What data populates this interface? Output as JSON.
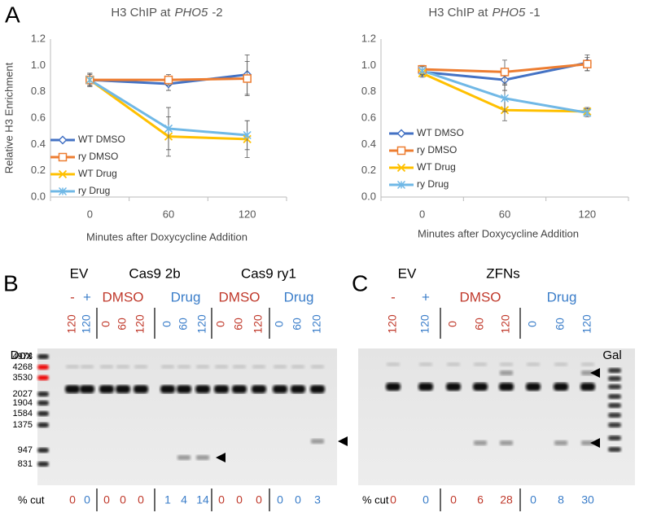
{
  "panel_labels": [
    "A",
    "B",
    "C"
  ],
  "chart_data": [
    {
      "type": "line",
      "title": {
        "text": "H3 ChIP at",
        "gene": "PHO5",
        "suffix": "-2"
      },
      "ylabel": "Relative H3 Enrichment",
      "xlabel": "Minutes after Doxycycline Addition",
      "categories": [
        "0",
        "60",
        "120"
      ],
      "ylim": [
        0,
        1.2
      ],
      "yticks": [
        {
          "value": 0,
          "label": "0.0"
        },
        {
          "value": 0.2,
          "label": "0.2"
        },
        {
          "value": 0.4,
          "label": "0.4"
        },
        {
          "value": 0.6,
          "label": "0.6"
        },
        {
          "value": 0.8,
          "label": "0.8"
        },
        {
          "value": 1,
          "label": "1.0"
        },
        {
          "value": 1.2,
          "label": "1.2"
        }
      ],
      "grid": false,
      "legend": "lower left",
      "series": [
        {
          "name": "WT DMSO",
          "color": "#4472c4",
          "marker": "diamond",
          "values": [
            0.89,
            0.86,
            0.93
          ],
          "errors": [
            0.05,
            0.05,
            0.15
          ]
        },
        {
          "name": "ry DMSO",
          "color": "#ed7d31",
          "marker": "square",
          "values": [
            0.89,
            0.89,
            0.9
          ],
          "errors": [
            0.04,
            0.04,
            0.13
          ]
        },
        {
          "name": "WT Drug",
          "color": "#ffc000",
          "marker": "x",
          "values": [
            0.89,
            0.46,
            0.44
          ],
          "errors": [
            0.05,
            0.15,
            0.14
          ]
        },
        {
          "name": "ry Drug",
          "color": "#70b8e6",
          "marker": "asterisk",
          "values": [
            0.89,
            0.52,
            0.47
          ],
          "errors": [
            0.05,
            0.16,
            0.11
          ]
        }
      ]
    },
    {
      "type": "line",
      "title": {
        "text": "H3 ChIP at",
        "gene": "PHO5",
        "suffix": "-1"
      },
      "ylabel": "Relative H3 Enrichment",
      "xlabel": "Minutes after Doxycycline Addition",
      "categories": [
        "0",
        "60",
        "120"
      ],
      "ylim": [
        0,
        1.2
      ],
      "yticks": [
        {
          "value": 0,
          "label": "0.0"
        },
        {
          "value": 0.2,
          "label": "0.2"
        },
        {
          "value": 0.4,
          "label": "0.4"
        },
        {
          "value": 0.6,
          "label": "0.6"
        },
        {
          "value": 0.8,
          "label": "0.8"
        },
        {
          "value": 1,
          "label": "1.0"
        },
        {
          "value": 1.2,
          "label": "1.2"
        }
      ],
      "grid": false,
      "legend": "lower left",
      "series": [
        {
          "name": "WT DMSO",
          "color": "#4472c4",
          "marker": "diamond",
          "values": [
            0.95,
            0.89,
            1.02
          ],
          "errors": [
            0.03,
            0.08,
            0.06
          ]
        },
        {
          "name": "ry DMSO",
          "color": "#ed7d31",
          "marker": "square",
          "values": [
            0.97,
            0.95,
            1.01
          ],
          "errors": [
            0.03,
            0.09,
            0.05
          ]
        },
        {
          "name": "WT Drug",
          "color": "#ffc000",
          "marker": "x",
          "values": [
            0.94,
            0.66,
            0.65
          ],
          "errors": [
            0.03,
            0.08,
            0.03
          ]
        },
        {
          "name": "ry Drug",
          "color": "#70b8e6",
          "marker": "asterisk",
          "values": [
            0.96,
            0.75,
            0.64
          ],
          "errors": [
            0.03,
            0.1,
            0.03
          ]
        }
      ]
    }
  ],
  "gels": [
    {
      "groups": [
        "EV",
        "Cas9 2b",
        "Cas9 ry1"
      ],
      "treatments": [
        {
          "text": "-",
          "color": "#c0392b"
        },
        {
          "text": "+",
          "color": "#3a7dc9"
        },
        {
          "text": "DMSO",
          "color": "#c0392b"
        },
        {
          "text": "Drug",
          "color": "#3a7dc9"
        },
        {
          "text": "DMSO",
          "color": "#c0392b"
        },
        {
          "text": "Drug",
          "color": "#3a7dc9"
        }
      ],
      "marker_label": "Dox",
      "ladder": [
        4973,
        4268,
        3530,
        2027,
        1904,
        1584,
        1375,
        947,
        831
      ],
      "lanes": [
        "120",
        "120",
        "0",
        "60",
        "120",
        "0",
        "60",
        "120",
        "0",
        "60",
        "120",
        "0",
        "60",
        "120"
      ],
      "lane_colors": [
        "#c0392b",
        "#3a7dc9",
        "#c0392b",
        "#c0392b",
        "#c0392b",
        "#3a7dc9",
        "#3a7dc9",
        "#3a7dc9",
        "#c0392b",
        "#c0392b",
        "#c0392b",
        "#3a7dc9",
        "#3a7dc9",
        "#3a7dc9"
      ],
      "cut_label": "% cut",
      "cut": [
        0,
        0,
        0,
        0,
        0,
        1,
        4,
        14,
        0,
        0,
        0,
        0,
        0,
        3
      ]
    },
    {
      "groups": [
        "EV",
        "ZFNs"
      ],
      "treatments": [
        {
          "text": "-",
          "color": "#c0392b"
        },
        {
          "text": "+",
          "color": "#3a7dc9"
        },
        {
          "text": "DMSO",
          "color": "#c0392b"
        },
        {
          "text": "Drug",
          "color": "#3a7dc9"
        }
      ],
      "marker_label": "Gal",
      "lanes": [
        "120",
        "120",
        "0",
        "60",
        "120",
        "0",
        "60",
        "120"
      ],
      "lane_colors": [
        "#c0392b",
        "#3a7dc9",
        "#c0392b",
        "#c0392b",
        "#c0392b",
        "#3a7dc9",
        "#3a7dc9",
        "#3a7dc9"
      ],
      "cut_label": "% cut",
      "cut": [
        0,
        0,
        0,
        6,
        28,
        0,
        8,
        30
      ]
    }
  ]
}
